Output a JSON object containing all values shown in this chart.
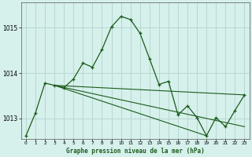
{
  "title": "Graphe pression niveau de la mer (hPa)",
  "background_color": "#d6f0ec",
  "grid_color": "#b8d8d0",
  "line_color": "#1a5c1a",
  "xlim": [
    -0.5,
    23.5
  ],
  "ylim": [
    1012.55,
    1015.55
  ],
  "yticks": [
    1013,
    1014,
    1015
  ],
  "xticks": [
    0,
    1,
    2,
    3,
    4,
    5,
    6,
    7,
    8,
    9,
    10,
    11,
    12,
    13,
    14,
    15,
    16,
    17,
    18,
    19,
    20,
    21,
    22,
    23
  ],
  "series1": {
    "x": [
      0,
      1,
      2,
      3,
      4,
      5,
      6,
      7,
      8,
      9,
      10,
      11,
      12,
      13,
      14,
      15,
      16,
      17,
      18,
      19,
      20,
      21,
      22,
      23
    ],
    "y": [
      1012.62,
      1013.12,
      1013.78,
      1013.73,
      1013.68,
      1013.87,
      1014.22,
      1014.13,
      1014.52,
      1015.02,
      1015.25,
      1015.18,
      1014.88,
      1014.32,
      1013.75,
      1013.82,
      1013.08,
      1013.28,
      1013.02,
      1012.62,
      1013.02,
      1012.82,
      1013.18,
      1013.52
    ]
  },
  "trend1": {
    "x": [
      3,
      23
    ],
    "y": [
      1013.73,
      1013.52
    ]
  },
  "trend2": {
    "x": [
      3,
      19
    ],
    "y": [
      1013.73,
      1012.62
    ]
  },
  "trend3": {
    "x": [
      3,
      23
    ],
    "y": [
      1013.73,
      1012.82
    ]
  }
}
